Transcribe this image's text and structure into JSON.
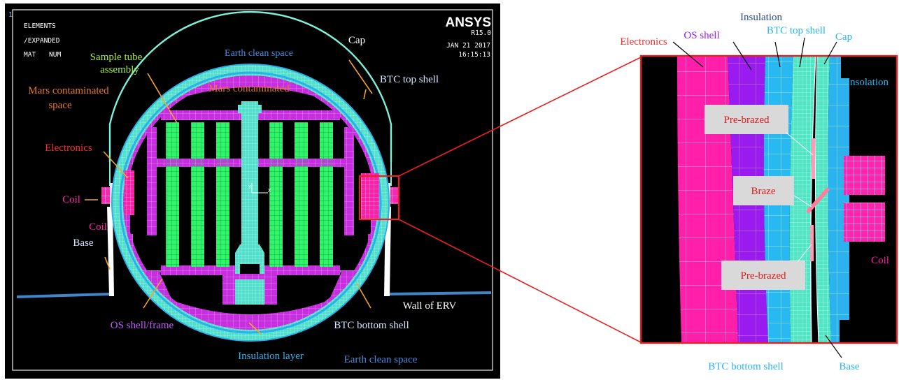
{
  "ansys_panel": {
    "window_id": "1",
    "hdr_elements": "ELEMENTS",
    "hdr_expanded": "/EXPANDED",
    "hdr_mat": "MAT",
    "hdr_num": "NUM",
    "brand": "ANSYS",
    "version": "R15.0",
    "date": "JAN 21 2017",
    "time": "16:15:13",
    "origin_x": "X",
    "origin_y": "Y"
  },
  "left_labels": {
    "earth_clean_top": "Earth clean space",
    "cap": "Cap",
    "sample_tube_1": "Sample tube",
    "sample_tube_2": "assembly",
    "btc_top_shell": "BTC top shell",
    "mars_cont_1": "Mars contaminated",
    "mars_cont_2": "space",
    "mars_cont_inner": "Mars contaminated",
    "electronics": "Electronics",
    "coil_1": "Coil",
    "coil_2": "Coil",
    "base": "Base",
    "wall_erv": "Wall of ERV",
    "os_shell_frame": "OS shell/frame",
    "btc_bottom_shell": "BTC bottom shell",
    "insulation_layer": "Insulation layer",
    "earth_clean_bottom": "Earth clean space"
  },
  "right_labels": {
    "insulation": "Insulation",
    "electronics": "Electronics",
    "os_shell": "OS shell",
    "btc_top_shell": "BTC top shell",
    "cap": "Cap",
    "insolation": "Insolation",
    "pre_brazed_top": "Pre-brazed",
    "braze": "Braze",
    "pre_brazed_bottom": "Pre-brazed",
    "coil": "Coil",
    "btc_bottom_shell": "BTC bottom shell",
    "base": "Base"
  },
  "colors": {
    "background_panel": "#000000",
    "mesh_magenta": "#cc2fe0",
    "mesh_green": "#33ff66",
    "mesh_cyan": "#55e3cf",
    "mesh_blue": "#29b6f0",
    "mesh_pink": "#ff1fa6",
    "mesh_purple": "#9b1df0",
    "highlight_red": "#e8201f",
    "erv_wall": "#3f85c8"
  }
}
